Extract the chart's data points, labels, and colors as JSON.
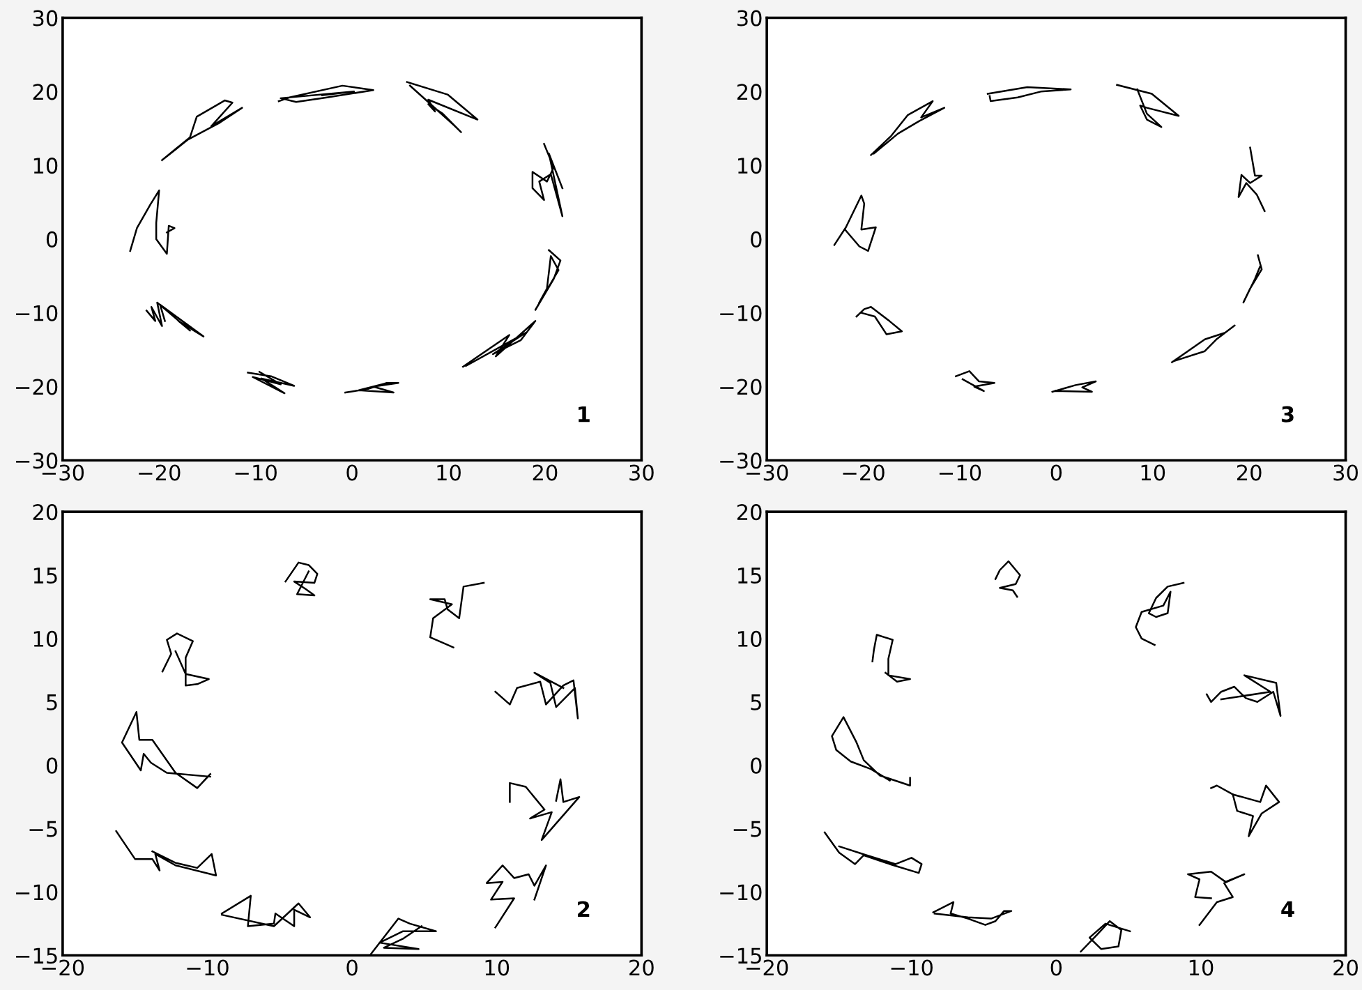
{
  "chart_data": [
    {
      "type": "line",
      "xlim": [
        -30,
        30
      ],
      "ylim": [
        -30,
        30
      ],
      "xticks": [
        -30,
        -20,
        -10,
        0,
        10,
        20,
        30
      ],
      "yticks": [
        -30,
        -20,
        -10,
        0,
        10,
        20,
        30
      ],
      "grid": false,
      "annotations": [
        "1"
      ],
      "series": [
        {
          "color": "#000000",
          "x": [
            -19.7,
            -16.8,
            -16.1,
            -13.2,
            -12.4,
            -14.6,
            -11.4,
            -13.7,
            -17,
            -19.4
          ],
          "values": [
            10.7,
            13.8,
            16.6,
            18.8,
            18.5,
            15.3,
            17.8,
            15.8,
            13.5,
            11
          ]
        },
        {
          "color": "#000000",
          "x": [
            -7.6,
            -6.5,
            -1,
            2.2,
            -2.6,
            -5.8,
            -7.4,
            0.2,
            -3.1
          ],
          "values": [
            18.7,
            19.2,
            20.8,
            20.2,
            19.2,
            18.6,
            19.1,
            20,
            19.5
          ]
        },
        {
          "color": "#000000",
          "x": [
            5.7,
            9.9,
            13,
            7.9,
            8.6,
            7.9,
            9.4,
            11.3,
            10.6,
            6
          ],
          "values": [
            21.3,
            19.6,
            16.2,
            18.9,
            17.3,
            18.3,
            17,
            14.5,
            15.4,
            20.8
          ]
        },
        {
          "color": "#000000",
          "x": [
            19.9,
            20.9,
            20.2,
            18.7,
            18.7,
            19.9,
            19.4,
            20.6,
            21.8,
            20.4,
            21.8
          ],
          "values": [
            12.9,
            9.7,
            7.8,
            9.1,
            6.9,
            5.3,
            7.8,
            8.8,
            3.1,
            11.6,
            6.9
          ]
        },
        {
          "color": "#000000",
          "x": [
            20.4,
            21.6,
            20.9,
            19,
            21.4,
            20.6,
            20.2,
            19.4
          ],
          "values": [
            -1.5,
            -2.9,
            -5.4,
            -9.6,
            -4.2,
            -2.3,
            -6.7,
            -8.6
          ]
        },
        {
          "color": "#000000",
          "x": [
            11.5,
            16.3,
            14.9,
            19,
            17.5,
            14.6,
            18,
            11.8
          ],
          "values": [
            -17.3,
            -13,
            -15.9,
            -11.1,
            -13.7,
            -15.6,
            -12.7,
            -17.2
          ]
        },
        {
          "color": "#000000",
          "x": [
            -10.8,
            -8.4,
            -6,
            -9.4,
            -7,
            -10.3,
            -7.4,
            -9.6
          ],
          "values": [
            -18.1,
            -18.6,
            -19.9,
            -18.9,
            -20.9,
            -18.7,
            -19.7,
            -18
          ]
        },
        {
          "color": "#000000",
          "x": [
            -0.7,
            1.7,
            3.6,
            4.8,
            2.2,
            4.3,
            0.7,
            3.1
          ],
          "values": [
            -20.8,
            -20.3,
            -19.5,
            -19.5,
            -20,
            -20.8,
            -20.5,
            -19.7
          ]
        },
        {
          "color": "#000000",
          "x": [
            -21.3,
            -20.4,
            -20.8,
            -19.7,
            -20.2,
            -16.8,
            -18,
            -15.4,
            -19.9,
            -19.4
          ],
          "values": [
            -9.7,
            -11.1,
            -9.2,
            -11.8,
            -8.6,
            -12.4,
            -11.1,
            -13.2,
            -8.9,
            -11.1
          ]
        },
        {
          "color": "#000000",
          "x": [
            -23,
            -22.3,
            -20.9,
            -20,
            -20.3,
            -20.3,
            -19.2,
            -19,
            -18.4,
            -19.2
          ],
          "values": [
            -1.6,
            1.5,
            4.7,
            6.6,
            2.2,
            0,
            -2,
            1.8,
            1.5,
            0.9
          ]
        }
      ]
    },
    {
      "type": "line",
      "xlim": [
        -30,
        30
      ],
      "ylim": [
        -30,
        30
      ],
      "xticks": [
        -30,
        -20,
        -10,
        0,
        10,
        20,
        30
      ],
      "yticks": [
        -30,
        -20,
        -10,
        0,
        10,
        20,
        30
      ],
      "grid": false,
      "annotations": [
        "3"
      ],
      "series": [
        {
          "color": "#000000",
          "x": [
            -19.2,
            -17.1,
            -15.4,
            -12.8,
            -14,
            -11.6,
            -14.2,
            -16.4,
            -18.9
          ],
          "values": [
            11.4,
            14,
            16.8,
            18.7,
            16.5,
            17.8,
            16,
            14.3,
            11.6
          ]
        },
        {
          "color": "#000000",
          "x": [
            -7.1,
            -3,
            1.5,
            -1.6,
            -4,
            -6.8,
            -6.9
          ],
          "values": [
            19.7,
            20.6,
            20.3,
            20,
            19.2,
            18.7,
            19.4
          ]
        },
        {
          "color": "#000000",
          "x": [
            6.3,
            9.9,
            12.7,
            9.4,
            8.7,
            9.4,
            10.9,
            9.4,
            8.4
          ],
          "values": [
            20.9,
            19.7,
            16.7,
            17.8,
            18.1,
            16.2,
            15.2,
            17,
            20.3
          ]
        },
        {
          "color": "#000000",
          "x": [
            20.1,
            20.6,
            21.3,
            20.1,
            19.2,
            18.9,
            19.7,
            20.8,
            21.6
          ],
          "values": [
            12.4,
            8.6,
            8.6,
            7.6,
            8.7,
            5.7,
            7.6,
            6,
            3.8
          ]
        },
        {
          "color": "#000000",
          "x": [
            20.9,
            21.3,
            20.1,
            19.4,
            20.6,
            21.1
          ],
          "values": [
            -2.2,
            -4.1,
            -6.7,
            -8.6,
            -5.4,
            -3.8
          ]
        },
        {
          "color": "#000000",
          "x": [
            12,
            15.4,
            17.5,
            18.5,
            16.6,
            15.4,
            12.3
          ],
          "values": [
            -16.7,
            -13.6,
            -12.7,
            -11.7,
            -13.6,
            -15.2,
            -16.5
          ]
        },
        {
          "color": "#000000",
          "x": [
            -10.4,
            -9,
            -8,
            -6.4,
            -8.5,
            -7.5,
            -9.7
          ],
          "values": [
            -18.6,
            -17.9,
            -19.3,
            -19.5,
            -20,
            -20.6,
            -19
          ]
        },
        {
          "color": "#000000",
          "x": [
            -0.4,
            2,
            4.1,
            2.7,
            3.7,
            -0.1
          ],
          "values": [
            -20.7,
            -19.8,
            -19.3,
            -20.1,
            -20.7,
            -20.6
          ]
        },
        {
          "color": "#000000",
          "x": [
            -20.7,
            -19.9,
            -19.2,
            -17.3,
            -16,
            -17.6,
            -18.8,
            -20.2
          ],
          "values": [
            -10.5,
            -9.5,
            -9.2,
            -11.1,
            -12.5,
            -12.9,
            -10.5,
            -10
          ]
        },
        {
          "color": "#000000",
          "x": [
            -23,
            -21.8,
            -20.2,
            -19.9,
            -20.2,
            -18.7,
            -19.5,
            -20.4,
            -21.9
          ],
          "values": [
            -0.8,
            1.6,
            5.9,
            4.8,
            1.3,
            1.6,
            -1.6,
            -1,
            1.3
          ]
        }
      ]
    },
    {
      "type": "line",
      "xlim": [
        -20,
        20
      ],
      "ylim": [
        -15,
        20
      ],
      "xticks": [
        -20,
        -10,
        0,
        10,
        20
      ],
      "yticks": [
        -15,
        -10,
        -5,
        0,
        5,
        10,
        15,
        20
      ],
      "grid": false,
      "annotations": [
        "2"
      ],
      "series": [
        {
          "color": "#000000",
          "x": [
            -4.6,
            -3.7,
            -3,
            -2.4,
            -2.6,
            -4,
            -3.2,
            -2.6,
            -3.8,
            -3
          ],
          "values": [
            14.5,
            16,
            15.8,
            15.1,
            14.4,
            14.5,
            13.9,
            13.4,
            13.5,
            15.3
          ]
        },
        {
          "color": "#000000",
          "x": [
            9.1,
            7.7,
            7.4,
            6.6,
            6.4,
            5.4,
            6.9,
            5.6,
            5.4,
            6.4,
            7
          ],
          "values": [
            14.4,
            14.1,
            11.6,
            12.3,
            13.1,
            13.1,
            12.7,
            11.6,
            10.1,
            9.6,
            9.3
          ]
        },
        {
          "color": "#000000",
          "x": [
            -13.1,
            -12.5,
            -12.8,
            -12.1,
            -11,
            -11.5,
            -11.5,
            -10.7,
            -9.9,
            -11.5,
            -12.2
          ],
          "values": [
            7.4,
            8.8,
            9.9,
            10.4,
            9.8,
            8.5,
            6.3,
            6.4,
            6.8,
            7.2,
            9
          ]
        },
        {
          "color": "#000000",
          "x": [
            9.9,
            10.9,
            11.4,
            13,
            13.4,
            14.6,
            15.3,
            15.6,
            15.4,
            14.1,
            13.7,
            12.6,
            14.6
          ],
          "values": [
            5.8,
            4.8,
            6.1,
            6.6,
            4.8,
            6.3,
            6.7,
            3.7,
            6.1,
            4.6,
            6.5,
            7.3,
            6.1
          ]
        },
        {
          "color": "#000000",
          "x": [
            -9.8,
            -10.7,
            -12.2,
            -13.8,
            -14.7,
            -14.9,
            -15.9,
            -14.6,
            -14.4,
            -13.9,
            -12.8,
            -9.8
          ],
          "values": [
            -0.7,
            -1.8,
            -0.6,
            2,
            2,
            4.2,
            1.8,
            -0.4,
            0.9,
            0.2,
            -0.6,
            -0.9
          ]
        },
        {
          "color": "#000000",
          "x": [
            10.9,
            10.9,
            12,
            13.3,
            12.3,
            13.8,
            13.1,
            15.7,
            14.6,
            14.4,
            14.1
          ],
          "values": [
            -2.9,
            -1.4,
            -1.7,
            -3.5,
            -4.2,
            -3.7,
            -5.9,
            -2.5,
            -2.9,
            -1.1,
            -2.8
          ]
        },
        {
          "color": "#000000",
          "x": [
            -16.3,
            -15,
            -13.8,
            -13.3,
            -13.6,
            -12.2,
            -9.4,
            -9.7,
            -10.7,
            -12.2,
            -13.8
          ],
          "values": [
            -5.2,
            -7.4,
            -7.4,
            -8.3,
            -7,
            -7.9,
            -8.7,
            -7,
            -8.1,
            -7.7,
            -6.8
          ]
        },
        {
          "color": "#000000",
          "x": [
            9.9,
            11.2,
            9.6,
            10.4,
            9.3,
            10.4,
            11.2,
            12.2,
            12.6,
            13.4,
            12.6
          ],
          "values": [
            -12.8,
            -10.5,
            -10.6,
            -9.2,
            -9.3,
            -7.9,
            -8.9,
            -8.6,
            -9.5,
            -7.9,
            -10.6
          ]
        },
        {
          "color": "#000000",
          "x": [
            -9,
            -7,
            -7.2,
            -5.4,
            -5.3,
            -4,
            -4,
            -2.9,
            -3.7,
            -5.4,
            -9
          ],
          "values": [
            -11.7,
            -10.3,
            -12.7,
            -12.5,
            -11.7,
            -12.7,
            -11.4,
            -12,
            -10.9,
            -12.7,
            -11.8
          ]
        },
        {
          "color": "#000000",
          "x": [
            1.3,
            3.2,
            4,
            5.8,
            3.5,
            1.9,
            4.6,
            2.2,
            3.5,
            4.8
          ],
          "values": [
            -14.9,
            -12.1,
            -12.5,
            -13.1,
            -13.1,
            -14,
            -14.5,
            -14.4,
            -13.7,
            -12.7
          ]
        }
      ]
    },
    {
      "type": "line",
      "xlim": [
        -20,
        20
      ],
      "ylim": [
        -15,
        20
      ],
      "xticks": [
        -20,
        -10,
        0,
        10,
        20
      ],
      "yticks": [
        -15,
        -10,
        -5,
        0,
        5,
        10,
        15,
        20
      ],
      "grid": false,
      "annotations": [
        "4"
      ],
      "series": [
        {
          "color": "#000000",
          "x": [
            -4.2,
            -3.9,
            -3.3,
            -2.5,
            -2.8,
            -3.9,
            -3,
            -2.7
          ],
          "values": [
            14.7,
            15.4,
            16.1,
            15,
            14.3,
            14,
            13.8,
            13.3
          ]
        },
        {
          "color": "#000000",
          "x": [
            8.8,
            7.7,
            6.9,
            6.4,
            6.9,
            7.7,
            7.9,
            7.4,
            5.9,
            5.5,
            5.9,
            6.8
          ],
          "values": [
            14.4,
            14.1,
            13.2,
            12,
            11.7,
            12,
            13.7,
            12.6,
            12.1,
            10.9,
            10,
            9.5
          ]
        },
        {
          "color": "#000000",
          "x": [
            -12.7,
            -12.6,
            -12.4,
            -11.3,
            -11.6,
            -11.6,
            -10.1,
            -11,
            -11.8
          ],
          "values": [
            8.2,
            9.1,
            10.3,
            9.9,
            8.4,
            7.1,
            6.8,
            6.6,
            7.3
          ]
        },
        {
          "color": "#000000",
          "x": [
            10.4,
            10.7,
            11.4,
            12.3,
            13.1,
            13.9,
            15,
            15.5,
            15.2,
            13,
            14.8,
            11.4
          ],
          "values": [
            5.6,
            5,
            5.8,
            6.2,
            5.3,
            5,
            5.8,
            3.9,
            6.5,
            7.1,
            5.8,
            5.2
          ]
        },
        {
          "color": "#000000",
          "x": [
            -10.1,
            -10.1,
            -12.2,
            -13.3,
            -13.8,
            -14.7,
            -15.5,
            -15.2,
            -14.2,
            -12.8,
            -11.5
          ],
          "values": [
            -1,
            -1.6,
            -0.8,
            0.4,
            1.8,
            3.8,
            2.3,
            1.2,
            0.3,
            -0.3,
            -1.2
          ]
        },
        {
          "color": "#000000",
          "x": [
            10.7,
            11.1,
            12.2,
            14.1,
            14.5,
            15.4,
            14.2,
            13.3,
            13.6,
            12.5,
            12.2
          ],
          "values": [
            -1.8,
            -1.6,
            -2.3,
            -2.9,
            -1.6,
            -2.9,
            -3.8,
            -5.6,
            -4,
            -3.6,
            -2.3
          ]
        },
        {
          "color": "#000000",
          "x": [
            -16,
            -15,
            -13.9,
            -13.3,
            -11.5,
            -9.5,
            -9.3,
            -10,
            -11.1,
            -13.1,
            -15
          ],
          "values": [
            -5.3,
            -6.9,
            -7.8,
            -7.1,
            -7.8,
            -8.5,
            -7.8,
            -7.3,
            -7.8,
            -7.1,
            -6.4
          ]
        },
        {
          "color": "#000000",
          "x": [
            9.9,
            11.1,
            12.2,
            11.6,
            13,
            11.7,
            10.7,
            9.1,
            9.9,
            9.6,
            10.7
          ],
          "values": [
            -12.6,
            -10.8,
            -10.4,
            -9.3,
            -8.6,
            -9.2,
            -8.4,
            -8.6,
            -9,
            -10.4,
            -10.5
          ]
        },
        {
          "color": "#000000",
          "x": [
            -8.5,
            -7.1,
            -7.3,
            -6.1,
            -4.9,
            -4.2,
            -3.6,
            -3.1,
            -4.5,
            -6.1,
            -8.4
          ],
          "values": [
            -11.6,
            -10.8,
            -11.7,
            -12.1,
            -12.6,
            -12.3,
            -11.5,
            -11.5,
            -12.1,
            -12,
            -11.7
          ]
        },
        {
          "color": "#000000",
          "x": [
            1.7,
            2.8,
            3.7,
            4.5,
            4.3,
            3.1,
            2.3,
            3.4,
            5.1
          ],
          "values": [
            -14.7,
            -13.4,
            -12.3,
            -13,
            -14.3,
            -14.5,
            -13.6,
            -12.5,
            -13.1
          ]
        }
      ]
    }
  ]
}
